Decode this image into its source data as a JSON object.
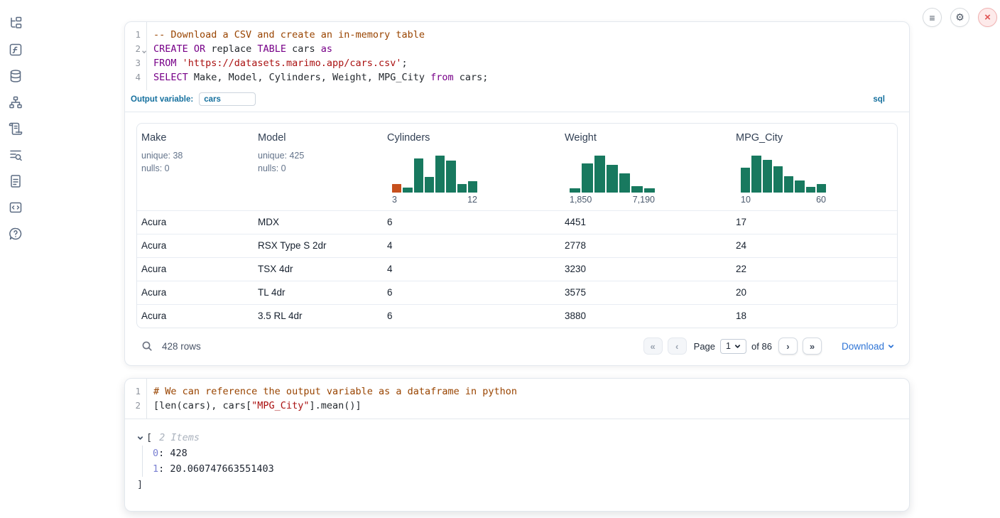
{
  "colors": {
    "histogram_green": "#18795f",
    "histogram_orange": "#c7501d",
    "accent_blue": "#15709e",
    "link_blue": "#2e74d6"
  },
  "icons": {
    "menu": "≡",
    "settings": "⚙",
    "close": "×",
    "first_page": "«",
    "prev_page": "‹",
    "next_page": "›",
    "last_page": "»"
  },
  "sidebar_icons": [
    "file-explorer",
    "variables",
    "datasources",
    "dependency-graph",
    "scratchpad",
    "logs",
    "documentation",
    "snippets",
    "help"
  ],
  "cells": [
    {
      "type": "sql",
      "code": {
        "lines": [
          {
            "num": "1",
            "fold": false,
            "tokens": [
              [
                "c",
                "-- Download a CSV and create an in-memory table"
              ]
            ]
          },
          {
            "num": "2",
            "fold": true,
            "tokens": [
              [
                "k",
                "CREATE"
              ],
              [
                "t",
                " "
              ],
              [
                "k",
                "OR"
              ],
              [
                "t",
                " replace "
              ],
              [
                "k",
                "TABLE"
              ],
              [
                "t",
                " cars "
              ],
              [
                "k",
                "as"
              ]
            ]
          },
          {
            "num": "3",
            "fold": false,
            "tokens": [
              [
                "k",
                "FROM"
              ],
              [
                "t",
                " "
              ],
              [
                "s",
                "'https://datasets.marimo.app/cars.csv'"
              ],
              [
                "t",
                ";"
              ]
            ]
          },
          {
            "num": "4",
            "fold": false,
            "tokens": [
              [
                "k",
                "SELECT"
              ],
              [
                "t",
                " Make, Model, Cylinders, Weight, MPG_City "
              ],
              [
                "k",
                "from"
              ],
              [
                "t",
                " cars;"
              ]
            ]
          }
        ]
      },
      "output_variable": {
        "label": "Output variable:",
        "value": "cars"
      },
      "language_badge": "sql",
      "table": {
        "columns": [
          {
            "name": "Make",
            "stats": [
              "unique: 38",
              "nulls: 0"
            ]
          },
          {
            "name": "Model",
            "stats": [
              "unique: 425",
              "nulls: 0"
            ]
          },
          {
            "name": "Cylinders",
            "histogram": 0
          },
          {
            "name": "Weight",
            "histogram": 1
          },
          {
            "name": "MPG_City",
            "histogram": 2
          }
        ],
        "rows": [
          [
            "Acura",
            "MDX",
            "6",
            "4451",
            "17"
          ],
          [
            "Acura",
            "RSX Type S 2dr",
            "4",
            "2778",
            "24"
          ],
          [
            "Acura",
            "TSX 4dr",
            "4",
            "3230",
            "22"
          ],
          [
            "Acura",
            "TL 4dr",
            "6",
            "3575",
            "20"
          ],
          [
            "Acura",
            "3.5 RL 4dr",
            "6",
            "3880",
            "18"
          ]
        ],
        "footer": {
          "row_count": "428 rows",
          "page_label": "Page",
          "page_value": "1",
          "of_label": "of 86",
          "download_label": "Download"
        }
      }
    },
    {
      "type": "python",
      "code": {
        "lines": [
          {
            "num": "1",
            "fold": false,
            "tokens": [
              [
                "c",
                "# We can reference the output variable as a dataframe in python"
              ]
            ]
          },
          {
            "num": "2",
            "fold": false,
            "tokens": [
              [
                "t",
                "[len(cars), cars["
              ],
              [
                "s",
                "\"MPG_City\""
              ],
              [
                "t",
                "].mean()]"
              ]
            ]
          }
        ]
      },
      "output_tree": {
        "open_bracket": "[",
        "items_label": "2 Items",
        "entries": [
          {
            "index": "0",
            "value": "428"
          },
          {
            "index": "1",
            "value": "20.060747663551403"
          }
        ],
        "close_bracket": "]"
      }
    }
  ],
  "chart_data": [
    {
      "type": "bar",
      "subtype": "column-summary-histogram",
      "column": "Cylinders",
      "x_range": [
        3,
        12
      ],
      "x_tick_labels": [
        "3",
        "12"
      ],
      "relative_heights": [
        0.23,
        0.13,
        0.92,
        0.43,
        1.0,
        0.86,
        0.24,
        0.3
      ],
      "bar_colors": [
        "#c7501d",
        "#18795f",
        "#18795f",
        "#18795f",
        "#18795f",
        "#18795f",
        "#18795f",
        "#18795f"
      ]
    },
    {
      "type": "bar",
      "subtype": "column-summary-histogram",
      "column": "Weight",
      "x_range": [
        1850,
        7190
      ],
      "x_tick_labels": [
        "1,850",
        "7,190"
      ],
      "relative_heights": [
        0.12,
        0.78,
        1.0,
        0.75,
        0.52,
        0.18,
        0.12
      ],
      "bar_colors": [
        "#18795f",
        "#18795f",
        "#18795f",
        "#18795f",
        "#18795f",
        "#18795f",
        "#18795f"
      ]
    },
    {
      "type": "bar",
      "subtype": "column-summary-histogram",
      "column": "MPG_City",
      "x_range": [
        10,
        60
      ],
      "x_tick_labels": [
        "10",
        "60"
      ],
      "relative_heights": [
        0.67,
        1.0,
        0.89,
        0.71,
        0.45,
        0.32,
        0.16,
        0.24
      ],
      "bar_colors": [
        "#18795f",
        "#18795f",
        "#18795f",
        "#18795f",
        "#18795f",
        "#18795f",
        "#18795f",
        "#18795f"
      ]
    }
  ]
}
